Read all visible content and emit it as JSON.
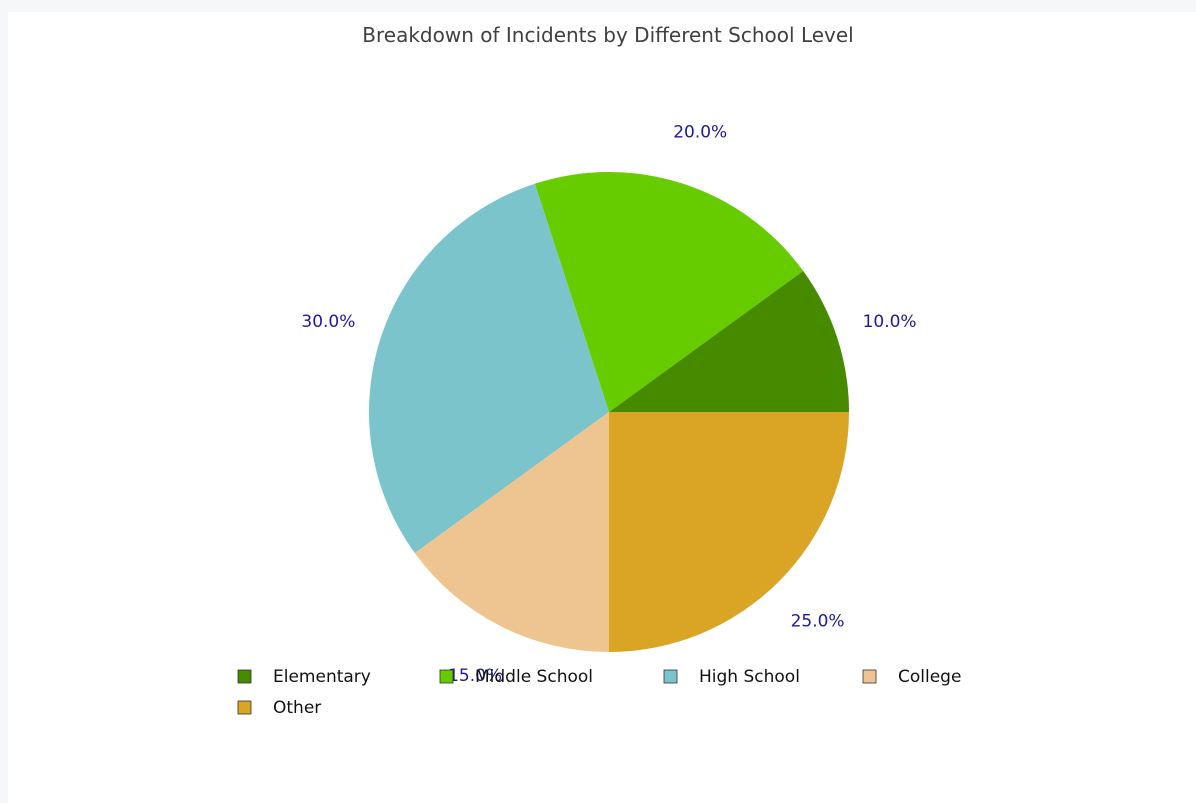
{
  "chart_data": {
    "type": "pie",
    "title": "Breakdown of Incidents by Different School Level",
    "categories": [
      "Elementary",
      "Middle School",
      "High School",
      "College",
      "Other"
    ],
    "values": [
      10.0,
      20.0,
      30.0,
      15.0,
      25.0
    ],
    "value_labels": [
      "10.0%",
      "20.0%",
      "30.0%",
      "15.0%",
      "25.0%"
    ],
    "colors": [
      "#468a00",
      "#66cc00",
      "#7bc4cc",
      "#eec591",
      "#daa524"
    ],
    "legend_position": "bottom"
  }
}
